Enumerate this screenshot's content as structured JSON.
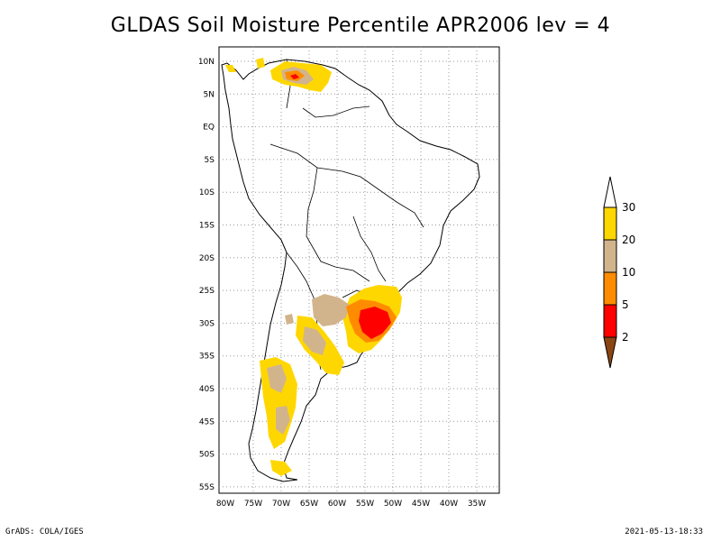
{
  "title": "GLDAS Soil Moisture Percentile APR2006 lev = 4",
  "footer": {
    "left": "GrADS: COLA/IGES",
    "right": "2021-05-13-18:33"
  },
  "map": {
    "region": "South America",
    "lon_range": [
      -80,
      -32
    ],
    "lat_range": [
      -56,
      12
    ],
    "lon_ticks": [
      "80W",
      "75W",
      "70W",
      "65W",
      "60W",
      "55W",
      "50W",
      "45W",
      "40W",
      "35W"
    ],
    "lat_ticks": [
      "10N",
      "5N",
      "EQ",
      "5S",
      "10S",
      "15S",
      "20S",
      "25S",
      "30S",
      "35S",
      "40S",
      "45S",
      "50S",
      "55S"
    ],
    "grid": true
  },
  "legend": {
    "placement": "right",
    "bins": [
      {
        "label": "",
        "color": "#ffffff"
      },
      {
        "label": "30",
        "color": "#ffd700"
      },
      {
        "label": "20",
        "color": "#d2b48c"
      },
      {
        "label": "10",
        "color": "#ff8c00"
      },
      {
        "label": "5",
        "color": "#ff0000"
      },
      {
        "label": "2",
        "color": "#8b4513"
      }
    ]
  },
  "colors": {
    "gold": "#ffd700",
    "tan": "#d2b48c",
    "orange": "#ff8c00",
    "red": "#ff0000",
    "brown": "#8b4513"
  }
}
